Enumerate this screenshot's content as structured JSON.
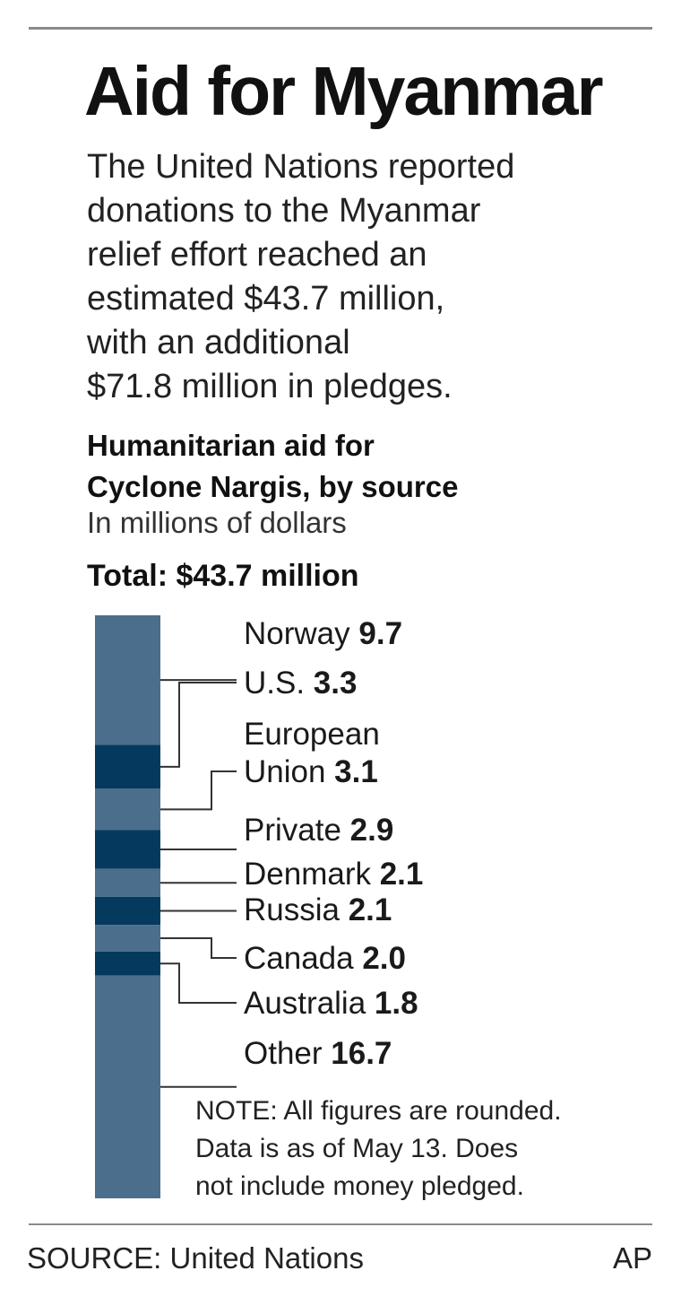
{
  "headline": "Aid for Myanmar",
  "intro_lines": [
    "The United Nations reported",
    "donations to the Myanmar",
    "relief effort reached an",
    "estimated $43.7 million,",
    "with an additional",
    "$71.8 million in pledges."
  ],
  "chart_data": {
    "type": "bar",
    "stacked": true,
    "orientation": "vertical-single-column",
    "title_lines": [
      "Humanitarian aid for",
      "Cyclone Nargis, by source"
    ],
    "subtitle": "In millions of dollars",
    "total_label": "Total: $43.7 million",
    "total": 43.7,
    "categories": [
      "Norway",
      "U.S.",
      "European Union",
      "Private",
      "Denmark",
      "Russia",
      "Canada",
      "Australia",
      "Other"
    ],
    "label_lines": [
      [
        "Norway"
      ],
      [
        "U.S."
      ],
      [
        "European",
        "Union"
      ],
      [
        "Private"
      ],
      [
        "Denmark"
      ],
      [
        "Russia"
      ],
      [
        "Canada"
      ],
      [
        "Australia"
      ],
      [
        "Other"
      ]
    ],
    "values": [
      9.7,
      3.3,
      3.1,
      2.9,
      2.1,
      2.1,
      2.0,
      1.8,
      16.7
    ],
    "value_labels": [
      "9.7",
      "3.3",
      "3.1",
      "2.9",
      "2.1",
      "2.1",
      "2.0",
      "1.8",
      "16.7"
    ],
    "colors": [
      "#4a6e8c",
      "#053a5e",
      "#4a6e8c",
      "#053a5e",
      "#4a6e8c",
      "#053a5e",
      "#4a6e8c",
      "#053a5e",
      "#4a6e8c"
    ],
    "leader_color": "#333333"
  },
  "note_lines": [
    "NOTE: All figures are rounded.",
    "Data is as of May 13. Does",
    "not include money pledged."
  ],
  "source": "SOURCE: United Nations",
  "credit": "AP"
}
